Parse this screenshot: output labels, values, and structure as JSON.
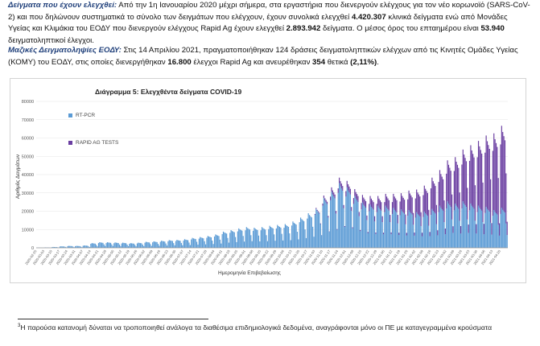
{
  "paragraph1": {
    "lead": "Δείγματα που έχουν ελεγχθεί:",
    "t1": " Από την 1η Ιανουαρίου 2020 μέχρι σήμερα, στα εργαστήρια που διενεργούν ελέγχους για τον νέο κορωνοϊό (SARS-CoV-2) και που δηλώνουν συστηματικά το σύνολο των δειγμάτων που ελέγχουν, έχουν συνολικά ελεγχθεί ",
    "b1": "4.420.307",
    "t2": " κλινικά δείγματα ενώ από Μονάδες Υγείας και Κλιμάκια του ΕΟΔΥ που διενεργούν ελέγχους Rapid Ag έχουν ελεγχθεί ",
    "b2": "2.893.942",
    "t3": " δείγματα. Ο μέσος όρος του επταημέρου είναι ",
    "b3": "53.940",
    "t4": " δειγματοληπτικοί έλεγχοι."
  },
  "paragraph2": {
    "lead": "Μαζικές Δειγματοληψίες ΕΟΔΥ:",
    "t1": " Στις 14 Απριλίου 2021, πραγματοποιήθηκαν 124 δράσεις δειγματοληπτικών ελέγχων από τις Κινητές Ομάδες Υγείας (ΚΟΜΥ) του ΕΟΔΥ, στις οποίες διενεργήθηκαν ",
    "b1": "16.800",
    "t2": " έλεγχοι Rapid Ag και ανευρέθηκαν ",
    "b2": "354",
    "t3": " θετικά ",
    "b3": "(2,11%)",
    "t4": "."
  },
  "chart_data": {
    "type": "bar",
    "title": "Διάγραμμα 5: Ελεγχθέντα δείγματα COVID-19",
    "xlabel": "Ημερομηνία Επιβεβαίωσης",
    "ylabel": "Αριθμός Δειγμάτων",
    "ylim": [
      0,
      80000
    ],
    "yticks": [
      0,
      10000,
      20000,
      30000,
      40000,
      50000,
      60000,
      70000,
      80000
    ],
    "stacked": true,
    "grid": true,
    "legend_position": "top-left",
    "x_range": [
      "2020-02-25",
      "2021-04-14"
    ],
    "series": [
      {
        "name": "RT-PCR",
        "color": "#5b9bd5",
        "weekly_values": [
          100,
          200,
          400,
          700,
          900,
          900,
          1100,
          2200,
          2600,
          2600,
          2500,
          2400,
          2200,
          2400,
          2800,
          3000,
          3300,
          3600,
          3700,
          4000,
          4600,
          5000,
          5500,
          6200,
          7500,
          8200,
          9000,
          9600,
          9300,
          9600,
          10200,
          10600,
          11000,
          12200,
          14000,
          16000,
          18000,
          23000,
          26000,
          30000,
          28000,
          24000,
          21000,
          20000,
          19500,
          19500,
          18500,
          17800,
          17500,
          16500,
          16800,
          18000,
          19500,
          21500,
          20500,
          21500,
          20500,
          19500,
          19000,
          17500,
          18500
        ]
      },
      {
        "name": "RAPID AG TESTS",
        "color": "#6a3ea1",
        "weekly_values": [
          0,
          0,
          0,
          0,
          0,
          0,
          0,
          0,
          0,
          0,
          0,
          0,
          0,
          0,
          0,
          0,
          0,
          0,
          0,
          0,
          0,
          0,
          0,
          0,
          0,
          0,
          0,
          0,
          0,
          0,
          0,
          0,
          0,
          0,
          0,
          0,
          500,
          1200,
          2000,
          2500,
          3000,
          3200,
          3500,
          4000,
          4500,
          5500,
          6500,
          7500,
          9000,
          10500,
          12000,
          14500,
          16500,
          19000,
          21500,
          24000,
          27000,
          30000,
          33000,
          35500,
          38000
        ]
      }
    ]
  },
  "footnote": {
    "number": "3",
    "text": "Η παρούσα κατανομή δύναται να τροποποιηθεί ανάλογα τα διαθέσιμα επιδημιολογικά δεδομένα, αναγράφονται μόνο οι ΠΕ με καταγεγραμμένα κρούσματα"
  }
}
